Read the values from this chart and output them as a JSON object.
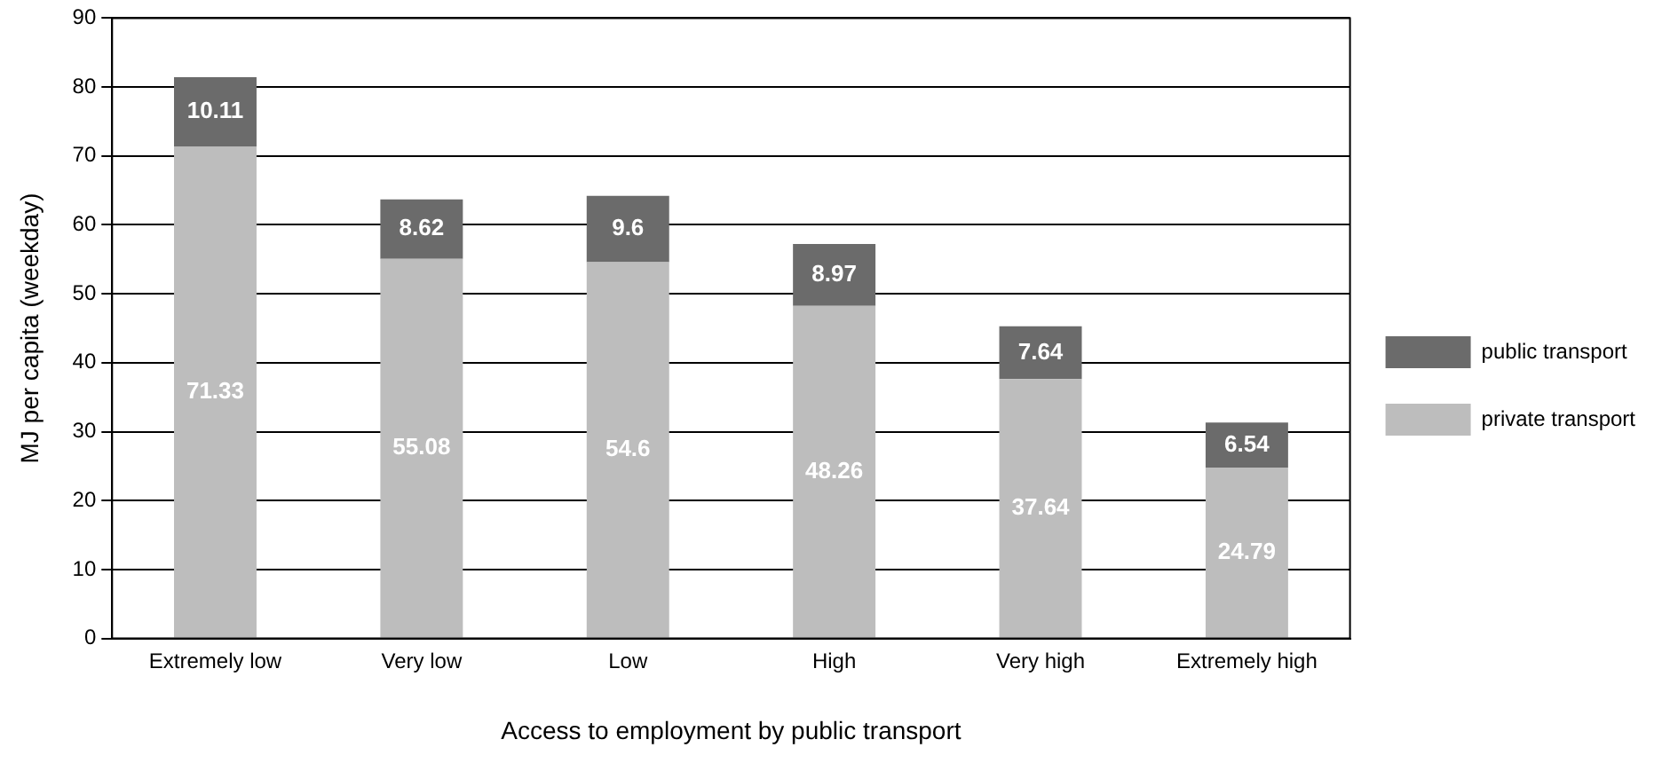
{
  "chart_data": {
    "type": "bar",
    "stacked": true,
    "xlabel": "Access to employment by public transport",
    "ylabel": "MJ per capita (weekday)",
    "categories": [
      "Extremely low",
      "Very low",
      "Low",
      "High",
      "Very high",
      "Extremely high"
    ],
    "series": [
      {
        "name": "private transport",
        "color": "#bdbdbd",
        "values": [
          71.33,
          55.08,
          54.6,
          48.26,
          37.64,
          24.79
        ]
      },
      {
        "name": "public transport",
        "color": "#6b6b6b",
        "values": [
          10.11,
          8.62,
          9.6,
          8.97,
          7.64,
          6.54
        ]
      }
    ],
    "ylim": [
      0,
      90
    ],
    "yticks": [
      0,
      10,
      20,
      30,
      40,
      50,
      60,
      70,
      80,
      90
    ],
    "grid": "y",
    "legend": "right",
    "data_labels": true
  }
}
